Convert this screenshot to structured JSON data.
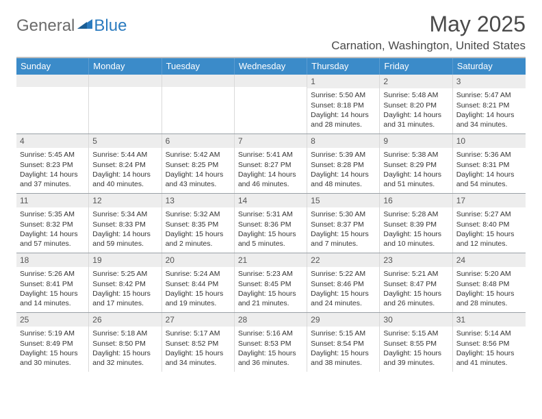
{
  "brand": {
    "text1": "General",
    "text2": "Blue"
  },
  "title": "May 2025",
  "location": "Carnation, Washington, United States",
  "colors": {
    "header_bg": "#3b8bc9",
    "header_text": "#ffffff",
    "day_num_bg": "#ededed",
    "border": "#bfbfbf",
    "cell_border": "#d9d9d9",
    "row_border": "#9aa0a6",
    "text": "#333333",
    "logo_gray": "#6b6b6b",
    "logo_blue": "#2b7bbf"
  },
  "day_headers": [
    "Sunday",
    "Monday",
    "Tuesday",
    "Wednesday",
    "Thursday",
    "Friday",
    "Saturday"
  ],
  "weeks": [
    [
      {
        "n": "",
        "sr": "",
        "ss": "",
        "dl": ""
      },
      {
        "n": "",
        "sr": "",
        "ss": "",
        "dl": ""
      },
      {
        "n": "",
        "sr": "",
        "ss": "",
        "dl": ""
      },
      {
        "n": "",
        "sr": "",
        "ss": "",
        "dl": ""
      },
      {
        "n": "1",
        "sr": "Sunrise: 5:50 AM",
        "ss": "Sunset: 8:18 PM",
        "dl": "Daylight: 14 hours and 28 minutes."
      },
      {
        "n": "2",
        "sr": "Sunrise: 5:48 AM",
        "ss": "Sunset: 8:20 PM",
        "dl": "Daylight: 14 hours and 31 minutes."
      },
      {
        "n": "3",
        "sr": "Sunrise: 5:47 AM",
        "ss": "Sunset: 8:21 PM",
        "dl": "Daylight: 14 hours and 34 minutes."
      }
    ],
    [
      {
        "n": "4",
        "sr": "Sunrise: 5:45 AM",
        "ss": "Sunset: 8:23 PM",
        "dl": "Daylight: 14 hours and 37 minutes."
      },
      {
        "n": "5",
        "sr": "Sunrise: 5:44 AM",
        "ss": "Sunset: 8:24 PM",
        "dl": "Daylight: 14 hours and 40 minutes."
      },
      {
        "n": "6",
        "sr": "Sunrise: 5:42 AM",
        "ss": "Sunset: 8:25 PM",
        "dl": "Daylight: 14 hours and 43 minutes."
      },
      {
        "n": "7",
        "sr": "Sunrise: 5:41 AM",
        "ss": "Sunset: 8:27 PM",
        "dl": "Daylight: 14 hours and 46 minutes."
      },
      {
        "n": "8",
        "sr": "Sunrise: 5:39 AM",
        "ss": "Sunset: 8:28 PM",
        "dl": "Daylight: 14 hours and 48 minutes."
      },
      {
        "n": "9",
        "sr": "Sunrise: 5:38 AM",
        "ss": "Sunset: 8:29 PM",
        "dl": "Daylight: 14 hours and 51 minutes."
      },
      {
        "n": "10",
        "sr": "Sunrise: 5:36 AM",
        "ss": "Sunset: 8:31 PM",
        "dl": "Daylight: 14 hours and 54 minutes."
      }
    ],
    [
      {
        "n": "11",
        "sr": "Sunrise: 5:35 AM",
        "ss": "Sunset: 8:32 PM",
        "dl": "Daylight: 14 hours and 57 minutes."
      },
      {
        "n": "12",
        "sr": "Sunrise: 5:34 AM",
        "ss": "Sunset: 8:33 PM",
        "dl": "Daylight: 14 hours and 59 minutes."
      },
      {
        "n": "13",
        "sr": "Sunrise: 5:32 AM",
        "ss": "Sunset: 8:35 PM",
        "dl": "Daylight: 15 hours and 2 minutes."
      },
      {
        "n": "14",
        "sr": "Sunrise: 5:31 AM",
        "ss": "Sunset: 8:36 PM",
        "dl": "Daylight: 15 hours and 5 minutes."
      },
      {
        "n": "15",
        "sr": "Sunrise: 5:30 AM",
        "ss": "Sunset: 8:37 PM",
        "dl": "Daylight: 15 hours and 7 minutes."
      },
      {
        "n": "16",
        "sr": "Sunrise: 5:28 AM",
        "ss": "Sunset: 8:39 PM",
        "dl": "Daylight: 15 hours and 10 minutes."
      },
      {
        "n": "17",
        "sr": "Sunrise: 5:27 AM",
        "ss": "Sunset: 8:40 PM",
        "dl": "Daylight: 15 hours and 12 minutes."
      }
    ],
    [
      {
        "n": "18",
        "sr": "Sunrise: 5:26 AM",
        "ss": "Sunset: 8:41 PM",
        "dl": "Daylight: 15 hours and 14 minutes."
      },
      {
        "n": "19",
        "sr": "Sunrise: 5:25 AM",
        "ss": "Sunset: 8:42 PM",
        "dl": "Daylight: 15 hours and 17 minutes."
      },
      {
        "n": "20",
        "sr": "Sunrise: 5:24 AM",
        "ss": "Sunset: 8:44 PM",
        "dl": "Daylight: 15 hours and 19 minutes."
      },
      {
        "n": "21",
        "sr": "Sunrise: 5:23 AM",
        "ss": "Sunset: 8:45 PM",
        "dl": "Daylight: 15 hours and 21 minutes."
      },
      {
        "n": "22",
        "sr": "Sunrise: 5:22 AM",
        "ss": "Sunset: 8:46 PM",
        "dl": "Daylight: 15 hours and 24 minutes."
      },
      {
        "n": "23",
        "sr": "Sunrise: 5:21 AM",
        "ss": "Sunset: 8:47 PM",
        "dl": "Daylight: 15 hours and 26 minutes."
      },
      {
        "n": "24",
        "sr": "Sunrise: 5:20 AM",
        "ss": "Sunset: 8:48 PM",
        "dl": "Daylight: 15 hours and 28 minutes."
      }
    ],
    [
      {
        "n": "25",
        "sr": "Sunrise: 5:19 AM",
        "ss": "Sunset: 8:49 PM",
        "dl": "Daylight: 15 hours and 30 minutes."
      },
      {
        "n": "26",
        "sr": "Sunrise: 5:18 AM",
        "ss": "Sunset: 8:50 PM",
        "dl": "Daylight: 15 hours and 32 minutes."
      },
      {
        "n": "27",
        "sr": "Sunrise: 5:17 AM",
        "ss": "Sunset: 8:52 PM",
        "dl": "Daylight: 15 hours and 34 minutes."
      },
      {
        "n": "28",
        "sr": "Sunrise: 5:16 AM",
        "ss": "Sunset: 8:53 PM",
        "dl": "Daylight: 15 hours and 36 minutes."
      },
      {
        "n": "29",
        "sr": "Sunrise: 5:15 AM",
        "ss": "Sunset: 8:54 PM",
        "dl": "Daylight: 15 hours and 38 minutes."
      },
      {
        "n": "30",
        "sr": "Sunrise: 5:15 AM",
        "ss": "Sunset: 8:55 PM",
        "dl": "Daylight: 15 hours and 39 minutes."
      },
      {
        "n": "31",
        "sr": "Sunrise: 5:14 AM",
        "ss": "Sunset: 8:56 PM",
        "dl": "Daylight: 15 hours and 41 minutes."
      }
    ]
  ]
}
